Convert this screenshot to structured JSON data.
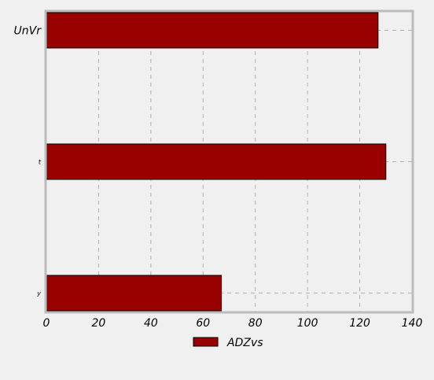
{
  "chart_data": {
    "type": "bar",
    "orientation": "horizontal",
    "categories": [
      "UnVr",
      "t",
      "y"
    ],
    "series": [
      {
        "name": "ADZvs",
        "values": [
          127,
          130,
          67
        ],
        "color": "#990000"
      }
    ],
    "xlim": [
      0,
      140
    ],
    "xticks": [
      0,
      20,
      40,
      60,
      80,
      100,
      120,
      140
    ],
    "grid": true,
    "legend_position": "bottom-center"
  }
}
